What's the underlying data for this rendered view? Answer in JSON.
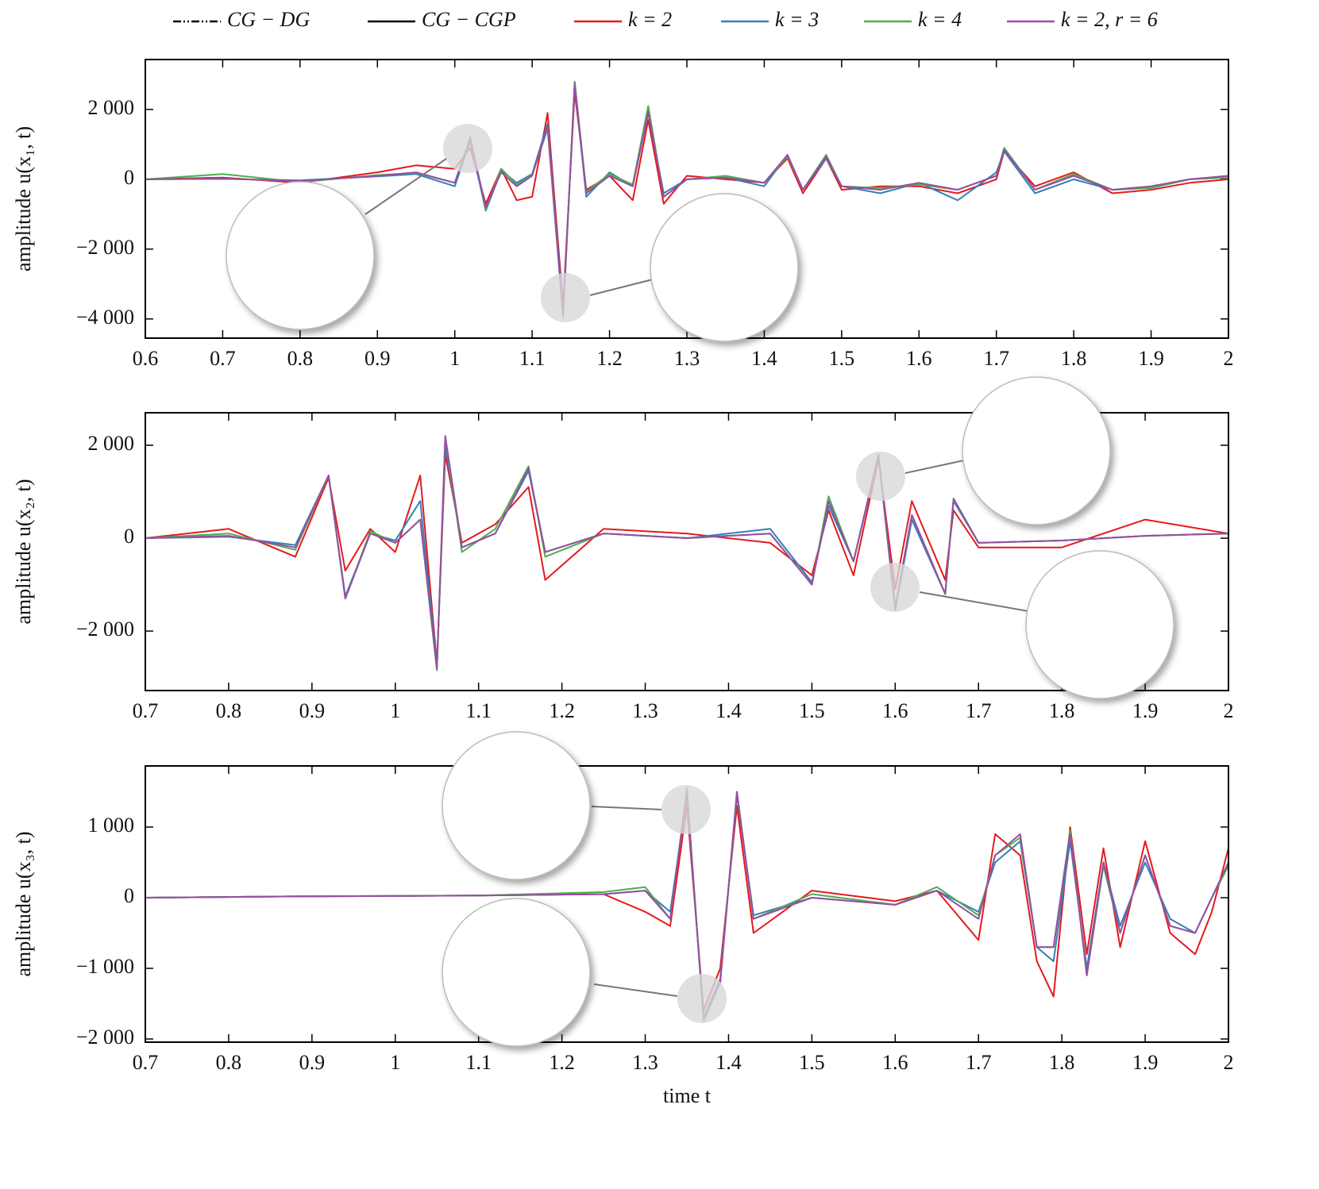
{
  "legend": [
    {
      "name": "CG − DG",
      "color": "#000000",
      "style": "dashdot"
    },
    {
      "name": "CG − CGP",
      "color": "#000000",
      "style": "solid"
    },
    {
      "name": "k = 2",
      "color": "#e41a1c",
      "style": "solid"
    },
    {
      "name": "k = 3",
      "color": "#377eb8",
      "style": "solid"
    },
    {
      "name": "k = 4",
      "color": "#4daf4a",
      "style": "solid"
    },
    {
      "name": "k = 2, r = 6",
      "color": "#984ea3",
      "style": "solid"
    }
  ],
  "chart_data": [
    {
      "type": "line",
      "ylabel": "amplitude u(x₁, t)",
      "xlim": [
        0.6,
        2
      ],
      "xticks": [
        0.6,
        0.7,
        0.8,
        0.9,
        1,
        1.1,
        1.2,
        1.3,
        1.4,
        1.5,
        1.6,
        1.7,
        1.8,
        1.9,
        2
      ],
      "ylim": [
        -4550,
        3430
      ],
      "yticks": [
        {
          "value": -4000,
          "label": "−4 000"
        },
        {
          "value": -2000,
          "label": "−2 000"
        },
        0,
        {
          "value": 2000,
          "label": "2 000"
        }
      ],
      "x": [
        0.6,
        0.7,
        0.8,
        0.9,
        0.95,
        1.0,
        1.02,
        1.04,
        1.06,
        1.08,
        1.1,
        1.12,
        1.14,
        1.155,
        1.17,
        1.2,
        1.23,
        1.25,
        1.27,
        1.3,
        1.35,
        1.4,
        1.43,
        1.45,
        1.48,
        1.5,
        1.55,
        1.6,
        1.65,
        1.7,
        1.71,
        1.75,
        1.8,
        1.85,
        1.9,
        1.95,
        2.0
      ],
      "series": [
        {
          "color": "#e41a1c",
          "values": [
            0,
            50,
            -100,
            200,
            400,
            300,
            900,
            -700,
            300,
            -600,
            -500,
            1900,
            -3600,
            2500,
            -300,
            100,
            -600,
            1700,
            -700,
            100,
            0,
            -100,
            600,
            -400,
            600,
            -300,
            -200,
            -200,
            -400,
            0,
            800,
            -200,
            200,
            -400,
            -300,
            -100,
            0
          ]
        },
        {
          "color": "#377eb8",
          "values": [
            0,
            10,
            -30,
            80,
            150,
            -200,
            1100,
            -900,
            250,
            -100,
            150,
            1600,
            -3800,
            2700,
            -500,
            200,
            -200,
            1900,
            -400,
            0,
            50,
            -200,
            700,
            -300,
            600,
            -200,
            -400,
            -100,
            -600,
            200,
            800,
            -400,
            0,
            -300,
            -200,
            0,
            100
          ]
        },
        {
          "color": "#4daf4a",
          "values": [
            0,
            150,
            -80,
            120,
            180,
            -100,
            1200,
            -850,
            300,
            -150,
            120,
            1450,
            -3950,
            2800,
            -350,
            150,
            -150,
            2100,
            -500,
            0,
            100,
            -100,
            650,
            -300,
            700,
            -200,
            -250,
            -150,
            -300,
            100,
            900,
            -300,
            150,
            -300,
            -250,
            0,
            50
          ]
        },
        {
          "color": "#984ea3",
          "values": [
            0,
            20,
            -50,
            100,
            200,
            -100,
            1150,
            -800,
            200,
            -200,
            100,
            1500,
            -3900,
            2750,
            -400,
            100,
            -200,
            1950,
            -500,
            0,
            50,
            -100,
            700,
            -300,
            650,
            -200,
            -300,
            -100,
            -300,
            100,
            850,
            -300,
            100,
            -300,
            -200,
            0,
            100
          ]
        }
      ]
    },
    {
      "type": "line",
      "ylabel": "amplitude u(x₂, t)",
      "xlim": [
        0.7,
        2
      ],
      "xticks": [
        0.7,
        0.8,
        0.9,
        1,
        1.1,
        1.2,
        1.3,
        1.4,
        1.5,
        1.6,
        1.7,
        1.8,
        1.9,
        2
      ],
      "ylim": [
        -3280,
        2700
      ],
      "yticks": [
        {
          "value": -2000,
          "label": "−2 000"
        },
        0,
        {
          "value": 2000,
          "label": "2 000"
        }
      ],
      "x": [
        0.7,
        0.8,
        0.88,
        0.92,
        0.94,
        0.97,
        1.0,
        1.03,
        1.05,
        1.06,
        1.08,
        1.12,
        1.16,
        1.18,
        1.25,
        1.35,
        1.45,
        1.5,
        1.52,
        1.55,
        1.58,
        1.6,
        1.62,
        1.66,
        1.67,
        1.7,
        1.8,
        1.9,
        2.0
      ],
      "series": [
        {
          "color": "#e41a1c",
          "values": [
            0,
            200,
            -400,
            1300,
            -700,
            200,
            -300,
            1350,
            -2700,
            1800,
            -100,
            300,
            1100,
            -900,
            200,
            100,
            -100,
            -800,
            600,
            -800,
            1700,
            -1100,
            800,
            -900,
            600,
            -200,
            -200,
            400,
            100
          ]
        },
        {
          "color": "#377eb8",
          "values": [
            0,
            30,
            -150,
            1350,
            -1250,
            100,
            -50,
            800,
            -2750,
            2000,
            -200,
            100,
            1450,
            -300,
            100,
            0,
            200,
            -950,
            700,
            -500,
            1750,
            -1550,
            400,
            -1200,
            800,
            -100,
            -50,
            50,
            100
          ]
        },
        {
          "color": "#4daf4a",
          "values": [
            0,
            100,
            -250,
            1350,
            -1300,
            150,
            -100,
            400,
            -2850,
            2150,
            -300,
            200,
            1550,
            -400,
            100,
            0,
            100,
            -1000,
            900,
            -500,
            1800,
            -1500,
            500,
            -1200,
            850,
            -100,
            -50,
            50,
            100
          ]
        },
        {
          "color": "#984ea3",
          "values": [
            0,
            50,
            -200,
            1350,
            -1300,
            100,
            -100,
            400,
            -2800,
            2200,
            -200,
            100,
            1500,
            -300,
            100,
            0,
            100,
            -1000,
            800,
            -500,
            1800,
            -1500,
            500,
            -1200,
            850,
            -100,
            -50,
            50,
            100
          ]
        }
      ]
    },
    {
      "type": "line",
      "ylabel": "amplitude u(x₃, t)",
      "xlabel": "time t",
      "xlim": [
        0.7,
        2
      ],
      "xticks": [
        0.7,
        0.8,
        0.9,
        1,
        1.1,
        1.2,
        1.3,
        1.4,
        1.5,
        1.6,
        1.7,
        1.8,
        1.9,
        2
      ],
      "ylim": [
        -2045,
        1865
      ],
      "yticks": [
        {
          "value": -2000,
          "label": "−2 000"
        },
        {
          "value": -1000,
          "label": "−1 000"
        },
        0,
        {
          "value": 1000,
          "label": "1 000"
        }
      ],
      "x": [
        0.7,
        0.9,
        1.1,
        1.25,
        1.3,
        1.33,
        1.35,
        1.37,
        1.39,
        1.41,
        1.43,
        1.5,
        1.6,
        1.65,
        1.7,
        1.72,
        1.75,
        1.77,
        1.79,
        1.81,
        1.83,
        1.85,
        1.87,
        1.9,
        1.93,
        1.96,
        1.98,
        2.0
      ],
      "series": [
        {
          "color": "#e41a1c",
          "values": [
            0,
            20,
            30,
            50,
            -200,
            -400,
            1300,
            -1600,
            -1000,
            1300,
            -500,
            100,
            -50,
            100,
            -600,
            900,
            600,
            -900,
            -1400,
            1000,
            -800,
            700,
            -700,
            800,
            -500,
            -800,
            -200,
            700
          ]
        },
        {
          "color": "#377eb8",
          "values": [
            0,
            20,
            30,
            50,
            100,
            -200,
            1450,
            -1700,
            -1150,
            1450,
            -250,
            0,
            -100,
            100,
            -200,
            500,
            800,
            -700,
            -900,
            800,
            -1000,
            500,
            -400,
            500,
            -300,
            -500,
            0,
            500
          ]
        },
        {
          "color": "#4daf4a",
          "values": [
            0,
            20,
            30,
            80,
            150,
            -300,
            1550,
            -1750,
            -1200,
            1500,
            -300,
            50,
            -100,
            150,
            -250,
            600,
            850,
            -700,
            -700,
            950,
            -1100,
            450,
            -500,
            600,
            -400,
            -500,
            0,
            450
          ]
        },
        {
          "color": "#984ea3",
          "values": [
            0,
            20,
            30,
            50,
            100,
            -300,
            1500,
            -1700,
            -1200,
            1500,
            -300,
            0,
            -100,
            100,
            -300,
            600,
            900,
            -700,
            -700,
            900,
            -1100,
            500,
            -500,
            600,
            -400,
            -500,
            0,
            500
          ]
        }
      ]
    }
  ]
}
